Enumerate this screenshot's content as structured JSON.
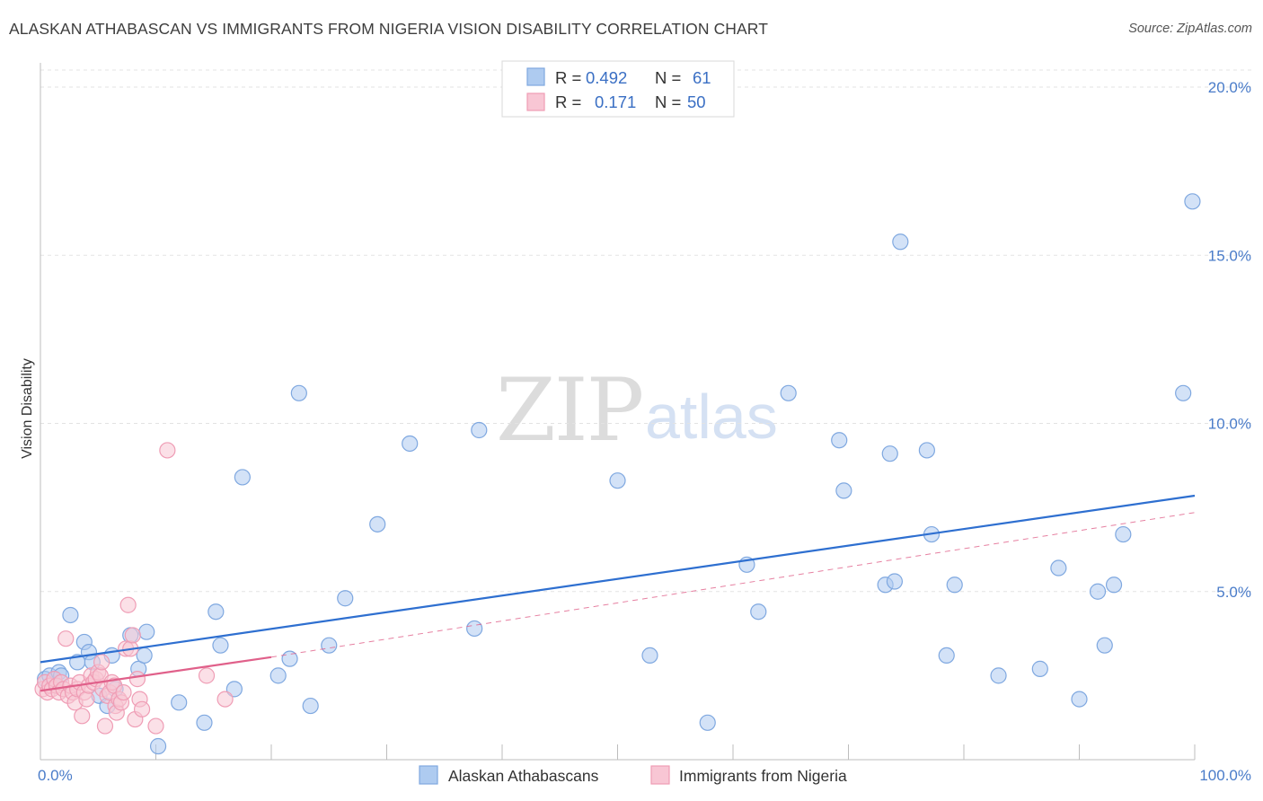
{
  "title": "ALASKAN ATHABASCAN VS IMMIGRANTS FROM NIGERIA VISION DISABILITY CORRELATION CHART",
  "source": "Source: ZipAtlas.com",
  "watermark": {
    "zip": "ZIP",
    "atlas": "atlas"
  },
  "chart_data": {
    "type": "scatter",
    "title": "ALASKAN ATHABASCAN VS IMMIGRANTS FROM NIGERIA VISION DISABILITY CORRELATION CHART",
    "xlabel": "",
    "ylabel": "Vision Disability",
    "xlim": [
      0,
      100
    ],
    "ylim": [
      0,
      20.8
    ],
    "x_ticks": [
      {
        "value": 0,
        "label": "0.0%"
      },
      {
        "value": 100,
        "label": "100.0%"
      }
    ],
    "y_ticks": [
      {
        "value": 5,
        "label": "5.0%"
      },
      {
        "value": 10,
        "label": "10.0%"
      },
      {
        "value": 15,
        "label": "15.0%"
      },
      {
        "value": 20,
        "label": "20.0%"
      }
    ],
    "grid": true,
    "legend": {
      "position": "top-center",
      "entries": [
        {
          "r_label": "R =",
          "r_value": "0.492",
          "n_label": "N =",
          "n_value": "61"
        },
        {
          "r_label": "R =",
          "r_value": "0.171",
          "n_label": "N =",
          "n_value": "50"
        }
      ]
    },
    "series": [
      {
        "name": "Alaskan Athabascans",
        "color": "#7fa8e0",
        "fill": "#aecbf0",
        "line_color": "#2e6fd0",
        "trend": {
          "x": [
            0,
            100
          ],
          "y": [
            2.9,
            7.85
          ]
        },
        "points": [
          [
            0.4,
            2.4
          ],
          [
            0.8,
            2.5
          ],
          [
            1.2,
            2.4
          ],
          [
            1.6,
            2.6
          ],
          [
            1.8,
            2.5
          ],
          [
            2.6,
            4.3
          ],
          [
            3.2,
            2.9
          ],
          [
            3.8,
            3.5
          ],
          [
            4.2,
            3.2
          ],
          [
            4.5,
            2.9
          ],
          [
            5.1,
            1.9
          ],
          [
            5.8,
            1.6
          ],
          [
            6.2,
            3.1
          ],
          [
            6.5,
            2.1
          ],
          [
            7.8,
            3.7
          ],
          [
            8.5,
            2.7
          ],
          [
            9.0,
            3.1
          ],
          [
            9.2,
            3.8
          ],
          [
            10.2,
            0.4
          ],
          [
            12.0,
            1.7
          ],
          [
            14.2,
            1.1
          ],
          [
            15.2,
            4.4
          ],
          [
            15.6,
            3.4
          ],
          [
            16.8,
            2.1
          ],
          [
            17.5,
            8.4
          ],
          [
            20.6,
            2.5
          ],
          [
            21.6,
            3.0
          ],
          [
            22.4,
            10.9
          ],
          [
            23.4,
            1.6
          ],
          [
            25.0,
            3.4
          ],
          [
            26.4,
            4.8
          ],
          [
            29.2,
            7.0
          ],
          [
            32.0,
            9.4
          ],
          [
            37.6,
            3.9
          ],
          [
            38.0,
            9.8
          ],
          [
            50.0,
            8.3
          ],
          [
            52.8,
            3.1
          ],
          [
            57.8,
            1.1
          ],
          [
            61.2,
            5.8
          ],
          [
            62.2,
            4.4
          ],
          [
            64.8,
            10.9
          ],
          [
            69.2,
            9.5
          ],
          [
            69.6,
            8.0
          ],
          [
            73.2,
            5.2
          ],
          [
            73.6,
            9.1
          ],
          [
            74.0,
            5.3
          ],
          [
            74.5,
            15.4
          ],
          [
            76.8,
            9.2
          ],
          [
            77.2,
            6.7
          ],
          [
            78.5,
            3.1
          ],
          [
            79.2,
            5.2
          ],
          [
            83.0,
            2.5
          ],
          [
            86.6,
            2.7
          ],
          [
            88.2,
            5.7
          ],
          [
            90.0,
            1.8
          ],
          [
            91.6,
            5.0
          ],
          [
            92.2,
            3.4
          ],
          [
            93.0,
            5.2
          ],
          [
            93.8,
            6.7
          ],
          [
            99.0,
            10.9
          ],
          [
            99.8,
            16.6
          ]
        ]
      },
      {
        "name": "Immigrants from Nigeria",
        "color": "#ef9db5",
        "fill": "#f8c6d4",
        "line_color": "#e0608a",
        "trend": {
          "x": [
            0,
            20
          ],
          "y": [
            2.05,
            3.05
          ]
        },
        "trend_extension": {
          "x": [
            20,
            100
          ],
          "y": [
            3.05,
            7.35
          ]
        },
        "points": [
          [
            0.2,
            2.1
          ],
          [
            0.4,
            2.3
          ],
          [
            0.6,
            2.0
          ],
          [
            0.8,
            2.2
          ],
          [
            1.0,
            2.1
          ],
          [
            1.2,
            2.4
          ],
          [
            1.4,
            2.2
          ],
          [
            1.6,
            2.0
          ],
          [
            1.8,
            2.3
          ],
          [
            2.0,
            2.1
          ],
          [
            2.2,
            3.6
          ],
          [
            2.4,
            1.9
          ],
          [
            2.6,
            2.2
          ],
          [
            2.8,
            2.0
          ],
          [
            3.0,
            1.7
          ],
          [
            3.2,
            2.1
          ],
          [
            3.4,
            2.3
          ],
          [
            3.6,
            1.3
          ],
          [
            3.8,
            2.0
          ],
          [
            4.0,
            1.8
          ],
          [
            4.2,
            2.2
          ],
          [
            4.4,
            2.5
          ],
          [
            4.6,
            2.3
          ],
          [
            4.8,
            2.4
          ],
          [
            5.0,
            2.6
          ],
          [
            5.2,
            2.5
          ],
          [
            5.3,
            2.9
          ],
          [
            5.4,
            2.1
          ],
          [
            5.6,
            1.0
          ],
          [
            5.8,
            1.9
          ],
          [
            6.0,
            2.0
          ],
          [
            6.2,
            2.3
          ],
          [
            6.4,
            2.2
          ],
          [
            6.5,
            1.6
          ],
          [
            6.6,
            1.4
          ],
          [
            6.8,
            1.8
          ],
          [
            7.0,
            1.7
          ],
          [
            7.2,
            2.0
          ],
          [
            7.4,
            3.3
          ],
          [
            7.6,
            4.6
          ],
          [
            7.8,
            3.3
          ],
          [
            8.0,
            3.7
          ],
          [
            8.2,
            1.2
          ],
          [
            8.4,
            2.4
          ],
          [
            8.6,
            1.8
          ],
          [
            8.8,
            1.5
          ],
          [
            10.0,
            1.0
          ],
          [
            11.0,
            9.2
          ],
          [
            14.4,
            2.5
          ],
          [
            16.0,
            1.8
          ]
        ]
      }
    ]
  }
}
